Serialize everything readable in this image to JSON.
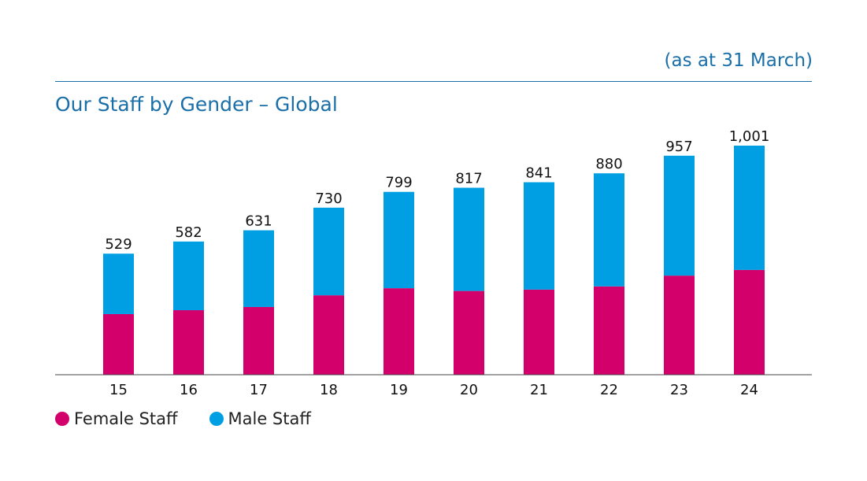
{
  "note": "(as at 31 March)",
  "chart_data": {
    "type": "bar",
    "stacked": true,
    "title": "Our Staff by Gender – Global",
    "categories": [
      "15",
      "16",
      "17",
      "18",
      "19",
      "20",
      "21",
      "22",
      "23",
      "24"
    ],
    "series": [
      {
        "name": "Female Staff",
        "color": "#d3006b",
        "values": [
          265,
          282,
          296,
          347,
          378,
          366,
          372,
          386,
          433,
          458
        ]
      },
      {
        "name": "Male Staff",
        "color": "#009fe3",
        "values": [
          264,
          300,
          335,
          383,
          421,
          451,
          469,
          494,
          524,
          543
        ]
      }
    ],
    "totals": [
      "529",
      "582",
      "631",
      "730",
      "799",
      "817",
      "841",
      "880",
      "957",
      "1,001"
    ],
    "ylim": [
      0,
      1001
    ],
    "legend": "bottom-left",
    "grid": false
  }
}
